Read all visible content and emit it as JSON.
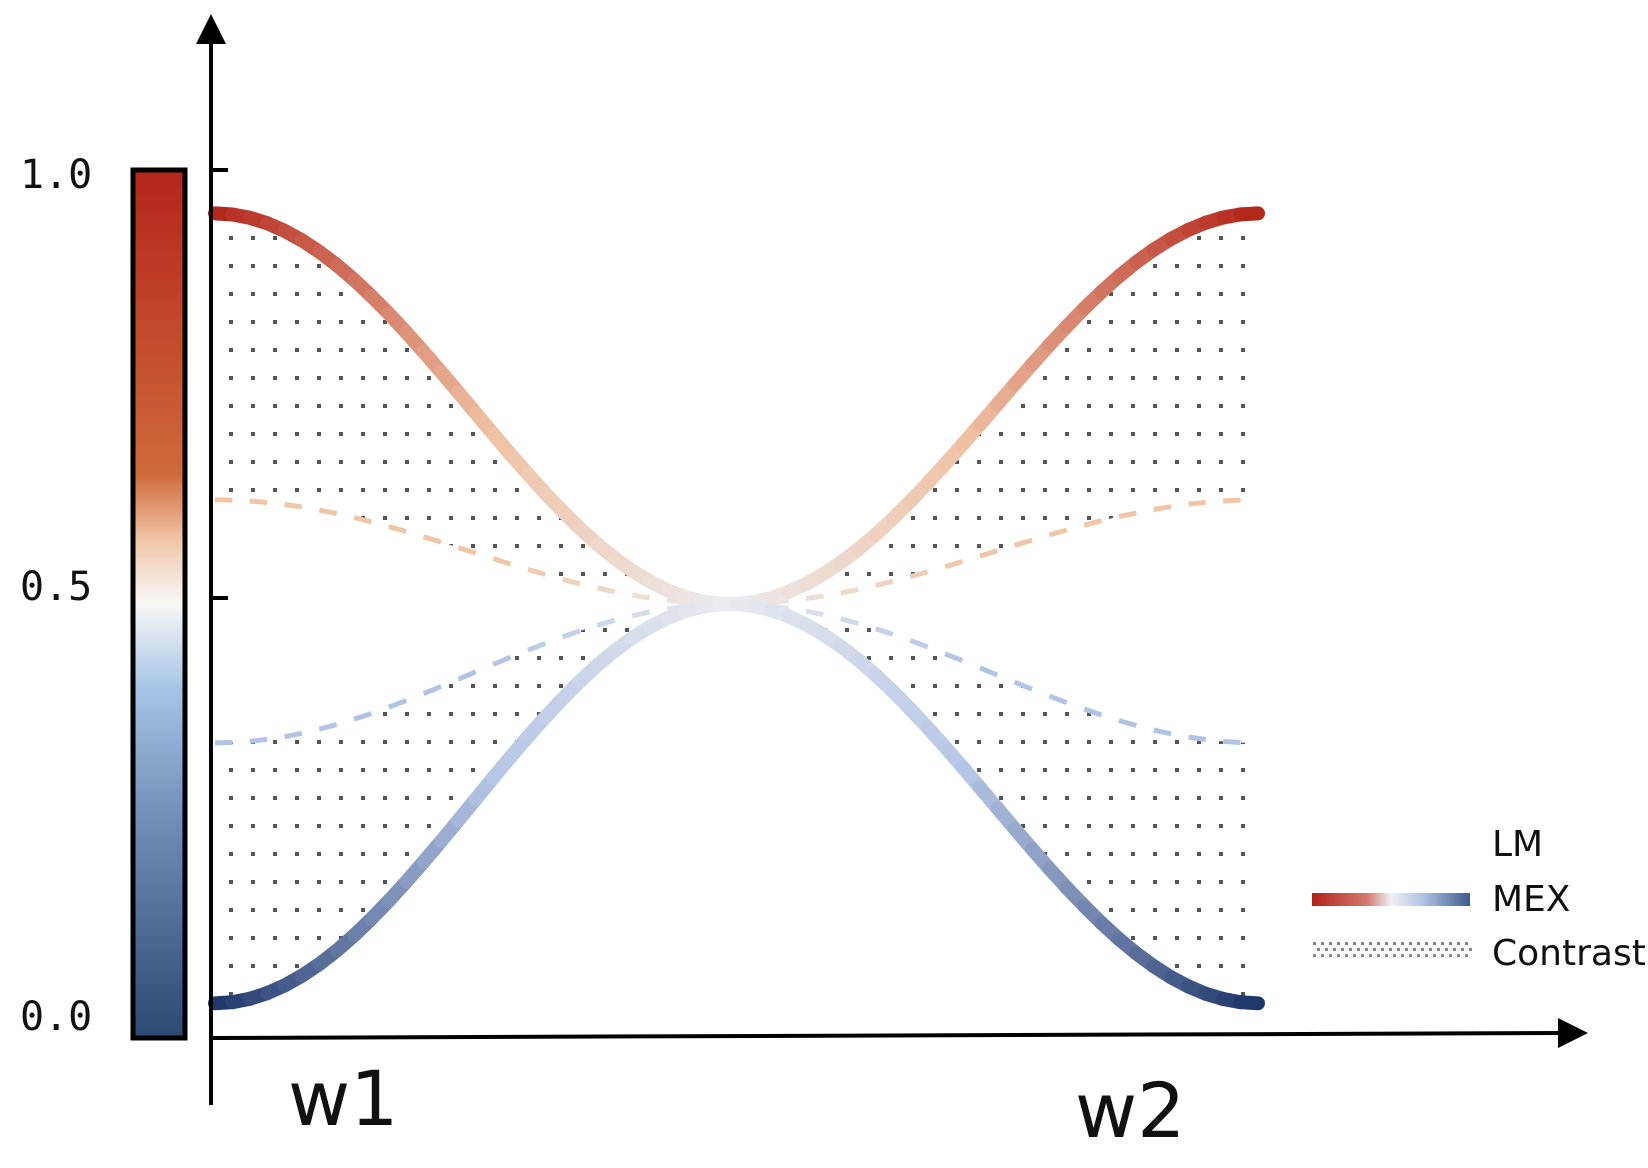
{
  "colorbar": {
    "ticks": [
      {
        "value": 1.0,
        "label": "1.0"
      },
      {
        "value": 0.5,
        "label": "0.5"
      },
      {
        "value": 0.0,
        "label": "0.0"
      }
    ],
    "stops": [
      "#2b4a72",
      "#5a7aa4",
      "#a4c3e6",
      "#f7f7f7",
      "#f2c9ad",
      "#cf6a3a",
      "#b4241c"
    ]
  },
  "x_labels": {
    "left": "w1",
    "right": "w2"
  },
  "curves": {
    "mex_high": {
      "start": 0.95,
      "end": 0.95,
      "mid": 0.5
    },
    "mex_low": {
      "start": 0.04,
      "end": 0.04,
      "mid": 0.5
    },
    "lm_high": {
      "start": 0.62,
      "end": 0.62,
      "mid": 0.5
    },
    "lm_low": {
      "start": 0.34,
      "end": 0.34,
      "mid": 0.5
    }
  },
  "colors": {
    "mex_red": "#b22318",
    "mex_blue": "#1c3468",
    "lm_orange": "#f0c6a6",
    "lm_blue": "#b2c4e4",
    "neutral": "#ececf0",
    "contrast_dots": "#555555",
    "axis": "#000000"
  },
  "legend": [
    {
      "key": "lm",
      "label": "LM"
    },
    {
      "key": "mex",
      "label": "MEX"
    },
    {
      "key": "contrast",
      "label": "Contrast"
    }
  ]
}
